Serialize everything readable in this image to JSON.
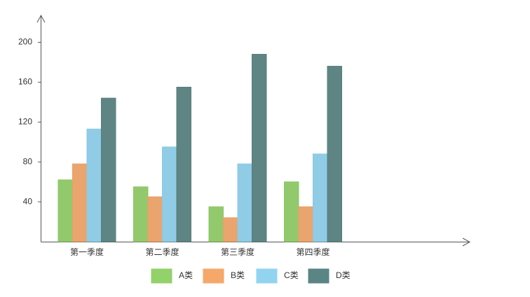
{
  "chart_data": {
    "type": "bar",
    "categories": [
      "第一季度",
      "第二季度",
      "第三季度",
      "第四季度"
    ],
    "series": [
      {
        "name": "A类",
        "color": "#93d16a",
        "values": [
          62,
          55,
          35,
          60
        ]
      },
      {
        "name": "B类",
        "color": "#f5a86a",
        "values": [
          78,
          45,
          24,
          35
        ]
      },
      {
        "name": "C类",
        "color": "#92d4f0",
        "values": [
          113,
          95,
          78,
          88
        ]
      },
      {
        "name": "D类",
        "color": "#5a8584",
        "values": [
          144,
          155,
          188,
          176
        ]
      }
    ],
    "ylim": [
      0,
      227
    ],
    "yticks": [
      40,
      80,
      120,
      160,
      200
    ],
    "legend": "bottom"
  }
}
